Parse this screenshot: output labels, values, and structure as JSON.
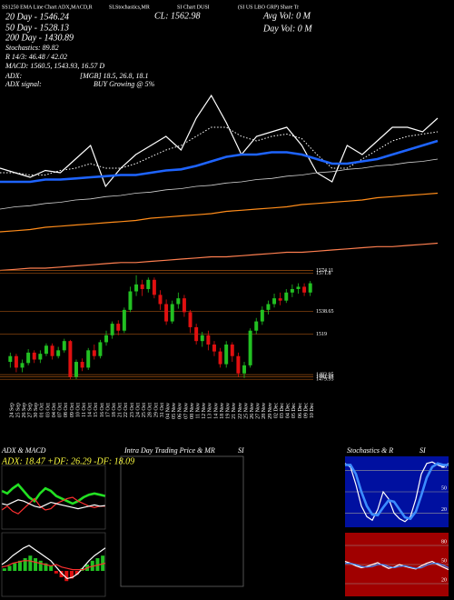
{
  "header": [
    "SS1250 EMA Line Chart ADX,MACD,R",
    "SLStochastics,MR",
    "SI Chart DUSI",
    "(SI US LBO GRP) Share Tr"
  ],
  "info": {
    "close": "CL: 1562.98",
    "avg_vol": "Avg Vol: 0  M",
    "day_vol": "Day Vol: 0  M"
  },
  "stats": [
    "20 Day - 1546.24",
    "50 Day - 1528.13",
    "200 Day - 1430.89",
    "Stochastics: 89.82",
    "R 14/3: 46.48 / 42.02",
    "MACD: 1560.5, 1543.93, 16.57 D",
    "ADX:",
    "[MGB] 18.5, 26.8, 18.1",
    "ADX  signal:",
    "BUY Growing @ 5%"
  ],
  "chart_data": [
    {
      "type": "line",
      "ylim": [
        1380,
        1620
      ],
      "series": [
        {
          "color": "#ffffff",
          "style": "solid",
          "values": [
            1472,
            1468,
            1464,
            1470,
            1468,
            1480,
            1492,
            1456,
            1472,
            1484,
            1492,
            1500,
            1488,
            1516,
            1536,
            1512,
            1484,
            1500,
            1504,
            1508,
            1492,
            1468,
            1460,
            1492,
            1484,
            1496,
            1508,
            1508,
            1504,
            1516
          ]
        },
        {
          "color": "#ffffff",
          "style": "dotted",
          "values": [
            1468,
            1468,
            1466,
            1466,
            1470,
            1472,
            1476,
            1472,
            1472,
            1476,
            1482,
            1488,
            1492,
            1500,
            1508,
            1508,
            1500,
            1496,
            1500,
            1502,
            1498,
            1484,
            1472,
            1472,
            1480,
            1488,
            1496,
            1500,
            1502,
            1504
          ]
        },
        {
          "color": "#1e64ff",
          "style": "thick",
          "values": [
            1460,
            1460,
            1460,
            1462,
            1462,
            1463,
            1464,
            1465,
            1466,
            1466,
            1468,
            1470,
            1471,
            1474,
            1478,
            1482,
            1484,
            1484,
            1486,
            1486,
            1484,
            1480,
            1476,
            1476,
            1478,
            1480,
            1484,
            1488,
            1492,
            1496
          ]
        },
        {
          "color": "#d0d0d0",
          "style": "thin",
          "values": [
            1436,
            1438,
            1439,
            1441,
            1442,
            1444,
            1445,
            1447,
            1448,
            1450,
            1451,
            1453,
            1454,
            1456,
            1457,
            1459,
            1460,
            1462,
            1463,
            1465,
            1466,
            1468,
            1469,
            1471,
            1472,
            1474,
            1475,
            1477,
            1478,
            1480
          ]
        },
        {
          "color": "#ff8c1a",
          "style": "solid",
          "values": [
            1416,
            1417,
            1418,
            1420,
            1421,
            1422,
            1423,
            1424,
            1425,
            1426,
            1428,
            1429,
            1430,
            1431,
            1432,
            1434,
            1435,
            1436,
            1437,
            1438,
            1440,
            1441,
            1442,
            1443,
            1444,
            1446,
            1447,
            1448,
            1449,
            1450
          ]
        },
        {
          "color": "#ff7f50",
          "style": "solid",
          "values": [
            1382,
            1383,
            1384,
            1384,
            1385,
            1386,
            1387,
            1388,
            1389,
            1389,
            1390,
            1391,
            1392,
            1393,
            1394,
            1394,
            1395,
            1396,
            1397,
            1398,
            1398,
            1399,
            1400,
            1401,
            1402,
            1403,
            1403,
            1404,
            1405,
            1406
          ]
        }
      ]
    },
    {
      "type": "candlestick",
      "categories": [
        "24 Sep",
        "25 Sep",
        "26 Sep",
        "27 Sep",
        "30 Sep",
        "01 Oct",
        "03 Oct",
        "04 Oct",
        "07 Oct",
        "08 Oct",
        "09 Oct",
        "10 Oct",
        "11 Oct",
        "14 Oct",
        "15 Oct",
        "16 Oct",
        "17 Oct",
        "18 Oct",
        "21 Oct",
        "22 Oct",
        "23 Oct",
        "24 Oct",
        "25 Oct",
        "28 Oct",
        "29 Oct",
        "31 Oct",
        "04 Nov",
        "05 Nov",
        "06 Nov",
        "07 Nov",
        "08 Nov",
        "11 Nov",
        "12 Nov",
        "13 Nov",
        "14 Nov",
        "18 Nov",
        "19 Nov",
        "21 Nov",
        "22 Nov",
        "25 Nov",
        "26 Nov",
        "27 Nov",
        "28 Nov",
        "29 Nov",
        "02 Dec",
        "03 Dec",
        "04 Dec",
        "05 Dec",
        "06 Dec",
        "09 Dec",
        "10 Dec"
      ],
      "open": [
        1495,
        1500,
        1490,
        1494,
        1503,
        1497,
        1502,
        1509,
        1500,
        1505,
        1513,
        1482,
        1495,
        1490,
        1505,
        1500,
        1512,
        1518,
        1528,
        1522,
        1540,
        1556,
        1562,
        1558,
        1566,
        1553,
        1545,
        1530,
        1545,
        1550,
        1538,
        1525,
        1513,
        1518,
        1510,
        1504,
        1493,
        1510,
        1500,
        1485,
        1492,
        1522,
        1530,
        1540,
        1545,
        1550,
        1548,
        1555,
        1558,
        1560,
        1555
      ],
      "close": [
        1500,
        1490,
        1494,
        1503,
        1497,
        1502,
        1509,
        1500,
        1505,
        1513,
        1482,
        1495,
        1490,
        1505,
        1500,
        1512,
        1518,
        1528,
        1522,
        1540,
        1556,
        1562,
        1558,
        1566,
        1553,
        1545,
        1530,
        1545,
        1550,
        1538,
        1525,
        1513,
        1518,
        1510,
        1504,
        1493,
        1510,
        1500,
        1485,
        1492,
        1522,
        1530,
        1540,
        1545,
        1550,
        1548,
        1555,
        1558,
        1560,
        1555,
        1563
      ],
      "high": [
        1503,
        1502,
        1497,
        1506,
        1505,
        1505,
        1511,
        1511,
        1508,
        1515,
        1514,
        1497,
        1498,
        1507,
        1510,
        1514,
        1522,
        1530,
        1531,
        1542,
        1560,
        1570,
        1566,
        1568,
        1568,
        1557,
        1549,
        1548,
        1555,
        1553,
        1540,
        1528,
        1521,
        1522,
        1513,
        1507,
        1513,
        1512,
        1503,
        1495,
        1524,
        1533,
        1543,
        1548,
        1554,
        1555,
        1558,
        1562,
        1563,
        1563,
        1565
      ],
      "low": [
        1490,
        1486,
        1486,
        1492,
        1494,
        1494,
        1500,
        1497,
        1498,
        1503,
        1480,
        1480,
        1487,
        1488,
        1497,
        1498,
        1509,
        1515,
        1518,
        1520,
        1538,
        1552,
        1552,
        1555,
        1550,
        1540,
        1527,
        1528,
        1541,
        1534,
        1520,
        1510,
        1508,
        1505,
        1500,
        1490,
        1490,
        1495,
        1482,
        1481,
        1490,
        1519,
        1527,
        1536,
        1542,
        1544,
        1546,
        1551,
        1554,
        1552,
        1552
      ],
      "up_color": "#22c022",
      "down_color": "#e01010",
      "ylim": [
        1462,
        1580
      ],
      "yticks": [
        1574.11,
        1571.8,
        1538.65,
        1519,
        1483.95,
        1481.95,
        1479.95
      ]
    },
    {
      "type": "line",
      "title": "ADX  & MACD",
      "subtitle": "ADX: 18.47 +DF: 26.29 -DF: 18.09",
      "ylim": [
        0,
        50
      ],
      "series": [
        {
          "color": "#22e022",
          "style": "thick",
          "values": [
            30,
            28,
            32,
            35,
            30,
            25,
            22,
            28,
            32,
            30,
            26,
            24,
            22,
            20,
            22,
            25,
            27,
            28,
            27,
            26
          ]
        },
        {
          "color": "#ff3030",
          "style": "solid",
          "values": [
            15,
            18,
            14,
            12,
            16,
            20,
            24,
            18,
            15,
            16,
            20,
            22,
            24,
            25,
            22,
            20,
            18,
            17,
            18,
            18
          ]
        },
        {
          "color": "#ffffff",
          "style": "solid",
          "values": [
            20,
            19,
            21,
            23,
            22,
            20,
            18,
            17,
            19,
            21,
            20,
            19,
            18,
            17,
            16,
            17,
            18,
            19,
            18,
            18.5
          ]
        }
      ]
    },
    {
      "type": "macd",
      "ylim": [
        -20,
        30
      ],
      "histogram": [
        2,
        4,
        6,
        8,
        10,
        12,
        10,
        8,
        6,
        4,
        -2,
        -5,
        -8,
        -6,
        -3,
        2,
        5,
        8,
        10,
        12
      ],
      "up_color": "#22c022",
      "down_color": "#e01010",
      "series": [
        {
          "color": "#ffffff",
          "style": "solid",
          "values": [
            5,
            8,
            12,
            15,
            18,
            20,
            17,
            14,
            11,
            8,
            3,
            -2,
            -6,
            -5,
            -2,
            3,
            8,
            12,
            15,
            18
          ]
        },
        {
          "color": "#ff3030",
          "style": "solid",
          "values": [
            3,
            4,
            6,
            7,
            8,
            8,
            7,
            6,
            5,
            4,
            5,
            3,
            2,
            1,
            1,
            1,
            3,
            4,
            5,
            6
          ]
        }
      ]
    },
    {
      "type": "intraday",
      "title": "Intra Day Trading Price  & MR",
      "title2": "SI"
    },
    {
      "type": "line",
      "title": "Stochastics & R",
      "title2": "SI",
      "ylim": [
        0,
        100
      ],
      "yticks": [
        80,
        50,
        20
      ],
      "background": "#0010a0",
      "series": [
        {
          "color": "#ffffff",
          "style": "solid",
          "values": [
            90,
            85,
            60,
            30,
            15,
            10,
            25,
            50,
            40,
            20,
            12,
            8,
            15,
            40,
            75,
            90,
            92,
            88,
            85,
            90
          ]
        },
        {
          "color": "#3c8cff",
          "style": "thick",
          "values": [
            88,
            88,
            75,
            50,
            30,
            18,
            17,
            28,
            38,
            36,
            25,
            14,
            12,
            22,
            45,
            70,
            85,
            90,
            88,
            88
          ]
        }
      ]
    },
    {
      "type": "line",
      "ylim": [
        0,
        100
      ],
      "yticks": [
        80,
        50,
        20
      ],
      "background": "#a00000",
      "series": [
        {
          "color": "#ffffff",
          "style": "solid",
          "values": [
            55,
            52,
            48,
            45,
            47,
            50,
            53,
            48,
            44,
            46,
            50,
            47,
            45,
            43,
            48,
            52,
            55,
            50,
            46,
            42
          ]
        },
        {
          "color": "#3c8cff",
          "style": "solid",
          "values": [
            52,
            52,
            50,
            47,
            46,
            47,
            50,
            50,
            47,
            45,
            47,
            48,
            46,
            44,
            45,
            49,
            52,
            52,
            49,
            45
          ]
        }
      ]
    }
  ]
}
